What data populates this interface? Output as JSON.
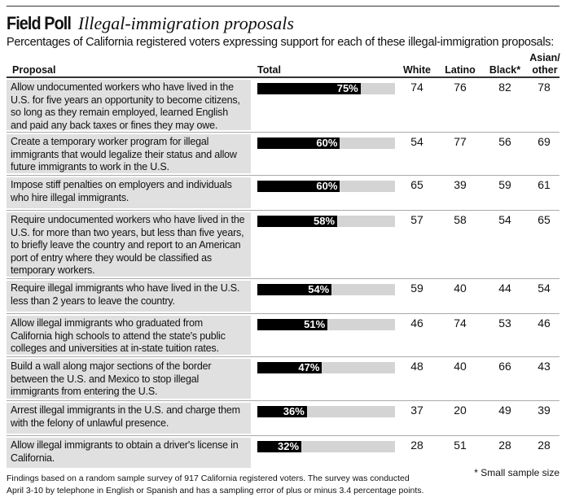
{
  "title": "Field Poll",
  "subtitle_title": "Illegal-immigration proposals",
  "subtitle": "Percentages of California registered voters expressing support for each of these illegal-immigration proposals:",
  "chart_data": {
    "type": "table",
    "columns": [
      "Proposal",
      "Total",
      "White",
      "Latino",
      "Black*",
      "Asian/ other"
    ],
    "xlim": [
      0,
      100
    ],
    "rows": [
      {
        "proposal": "Allow undocumented workers who have lived in the U.S. for five years an opportunity to become citizens, so long as they remain employed, learned English and paid any back taxes or fines they may owe.",
        "total": 75,
        "total_label": "75%",
        "white": "74",
        "latino": "76",
        "black": "82",
        "asian": "78"
      },
      {
        "proposal": "Create a temporary worker program for illegal immigrants that would legalize their status and allow future immigrants to work in the U.S.",
        "total": 60,
        "total_label": "60%",
        "white": "54",
        "latino": "77",
        "black": "56",
        "asian": "69"
      },
      {
        "proposal": "Impose stiff penalties on employers and individuals who hire illegal immigrants.",
        "total": 60,
        "total_label": "60%",
        "white": "65",
        "latino": "39",
        "black": "59",
        "asian": "61"
      },
      {
        "proposal": "Require undocumented workers who have lived in the U.S. for more than two years, but less than five years, to briefly leave the country and report to an American port of entry where they would be classified as temporary workers.",
        "total": 58,
        "total_label": "58%",
        "white": "57",
        "latino": "58",
        "black": "54",
        "asian": "65"
      },
      {
        "proposal": "Require illegal immigrants who have lived in the U.S. less than 2 years to leave the country.",
        "total": 54,
        "total_label": "54%",
        "white": "59",
        "latino": "40",
        "black": "44",
        "asian": "54"
      },
      {
        "proposal": "Allow illegal immigrants who graduated from California high schools to attend the state's public colleges and universities at in-state tuition rates.",
        "total": 51,
        "total_label": "51%",
        "white": "46",
        "latino": "74",
        "black": "53",
        "asian": "46"
      },
      {
        "proposal": "Build a wall along major sections of the border between the U.S. and Mexico to stop illegal immigrants from entering the U.S.",
        "total": 47,
        "total_label": "47%",
        "white": "48",
        "latino": "40",
        "black": "66",
        "asian": "43"
      },
      {
        "proposal": "Arrest illegal immigrants in the U.S. and charge them with the felony of unlawful presence.",
        "total": 36,
        "total_label": "36%",
        "white": "37",
        "latino": "20",
        "black": "49",
        "asian": "39"
      },
      {
        "proposal": "Allow illegal immigrants to obtain a driver's license in California.",
        "total": 32,
        "total_label": "32%",
        "white": "28",
        "latino": "51",
        "black": "28",
        "asian": "28"
      }
    ]
  },
  "footnote": "Findings based on a random sample survey of 917 California registered voters. The survey was conducted",
  "footnote2": "April 3-10 by telephone in English or Spanish and has a sampling error of plus or minus 3.4 percentage points.",
  "note": "* Small sample size",
  "colors": {
    "bar": "#000000",
    "track": "#d4d4d4",
    "proposal_bg": "#e0e0e0"
  }
}
